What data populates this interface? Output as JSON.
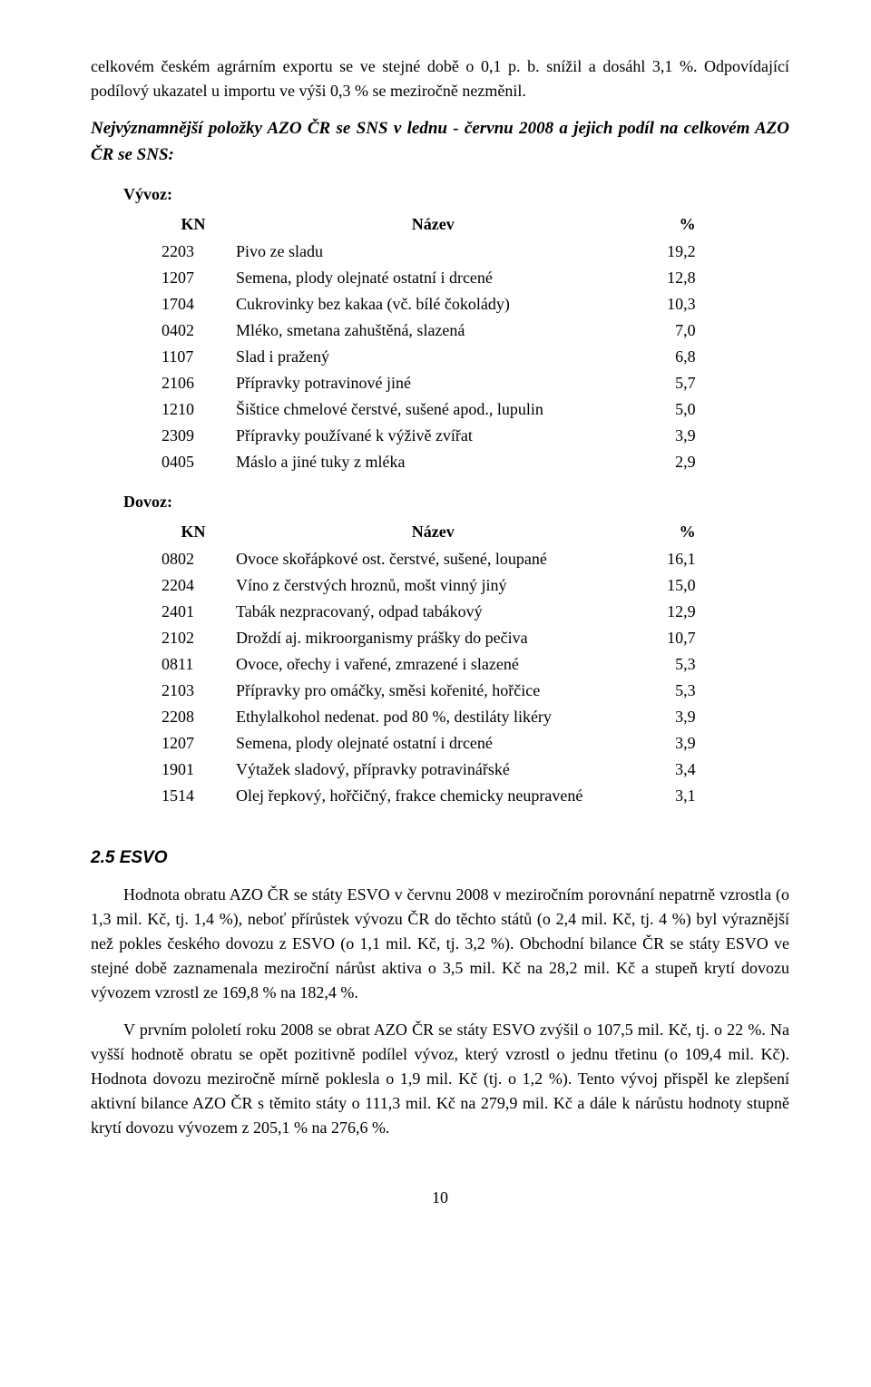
{
  "intro_para": "celkovém českém agrárním exportu se ve stejné době o 0,1 p. b. snížil a dosáhl 3,1 %. Odpovídající podílový ukazatel u importu ve výši 0,3 % se meziročně nezměnil.",
  "heading": "Nejvýznamnější položky AZO ČR se SNS v lednu - červnu 2008 a jejich podíl na celkovém AZO ČR se SNS:",
  "vyvoz_label": "Vývoz:",
  "dovoz_label": "Dovoz:",
  "col_kn": "KN",
  "col_nazev": "Název",
  "col_pct": "%",
  "vyvoz_rows": [
    {
      "kn": "2203",
      "nazev": "Pivo ze sladu",
      "pct": "19,2"
    },
    {
      "kn": "1207",
      "nazev": "Semena, plody olejnaté ostatní i drcené",
      "pct": "12,8"
    },
    {
      "kn": "1704",
      "nazev": "Cukrovinky bez kakaa (vč. bílé čokolády)",
      "pct": "10,3"
    },
    {
      "kn": "0402",
      "nazev": "Mléko, smetana zahuštěná, slazená",
      "pct": "7,0"
    },
    {
      "kn": "1107",
      "nazev": "Slad i pražený",
      "pct": "6,8"
    },
    {
      "kn": "2106",
      "nazev": "Přípravky potravinové jiné",
      "pct": "5,7"
    },
    {
      "kn": "1210",
      "nazev": "Šištice chmelové čerstvé, sušené apod., lupulin",
      "pct": "5,0"
    },
    {
      "kn": "2309",
      "nazev": "Přípravky používané k výživě zvířat",
      "pct": "3,9"
    },
    {
      "kn": "0405",
      "nazev": "Máslo a jiné tuky z mléka",
      "pct": "2,9"
    }
  ],
  "dovoz_rows": [
    {
      "kn": "0802",
      "nazev": "Ovoce skořápkové ost. čerstvé, sušené, loupané",
      "pct": "16,1"
    },
    {
      "kn": "2204",
      "nazev": "Víno z čerstvých hroznů, mošt vinný jiný",
      "pct": "15,0"
    },
    {
      "kn": "2401",
      "nazev": "Tabák nezpracovaný, odpad tabákový",
      "pct": "12,9"
    },
    {
      "kn": "2102",
      "nazev": "Droždí aj. mikroorganismy prášky do pečiva",
      "pct": "10,7"
    },
    {
      "kn": "0811",
      "nazev": "Ovoce, ořechy i vařené, zmrazené i slazené",
      "pct": "5,3"
    },
    {
      "kn": "2103",
      "nazev": "Přípravky pro omáčky, směsi kořenité, hořčice",
      "pct": "5,3"
    },
    {
      "kn": "2208",
      "nazev": "Ethylalkohol nedenat. pod 80 %, destiláty likéry",
      "pct": "3,9"
    },
    {
      "kn": "1207",
      "nazev": "Semena, plody olejnaté ostatní i drcené",
      "pct": "3,9"
    },
    {
      "kn": "1901",
      "nazev": "Výtažek sladový, přípravky potravinářské",
      "pct": "3,4"
    },
    {
      "kn": "1514",
      "nazev": "Olej řepkový, hořčičný, frakce chemicky neupravené",
      "pct": "3,1"
    }
  ],
  "section_title": "2.5  ESVO",
  "esvo_para1": "Hodnota obratu AZO ČR se státy ESVO v červnu 2008 v meziročním porovnání nepatrně vzrostla (o 1,3 mil. Kč, tj. 1,4 %), neboť přírůstek vývozu ČR do těchto států (o 2,4 mil. Kč, tj. 4 %) byl výraznější než pokles českého dovozu z ESVO (o 1,1 mil. Kč, tj. 3,2 %). Obchodní bilance ČR se státy ESVO ve stejné době zaznamenala meziroční nárůst aktiva o 3,5 mil. Kč na 28,2 mil. Kč a stupeň krytí dovozu vývozem vzrostl ze 169,8 % na 182,4 %.",
  "esvo_para2": "V prvním pololetí roku 2008 se obrat AZO ČR se státy ESVO zvýšil o 107,5 mil. Kč, tj. o 22 %. Na vyšší hodnotě obratu se opět pozitivně podílel vývoz, který vzrostl o jednu třetinu (o 109,4 mil. Kč). Hodnota dovozu meziročně mírně poklesla o 1,9 mil. Kč (tj. o 1,2 %). Tento vývoj přispěl ke zlepšení aktivní bilance AZO ČR s těmito státy o 111,3 mil. Kč na 279,9 mil. Kč a dále k nárůstu hodnoty stupně krytí dovozu vývozem z 205,1 % na 276,6 %.",
  "page_number": "10"
}
